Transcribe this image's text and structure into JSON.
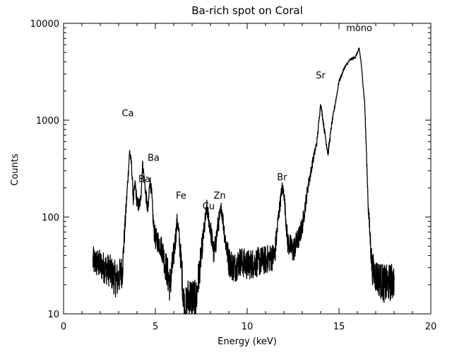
{
  "chart_data": {
    "type": "line",
    "title": "Ba-rich spot on Coral",
    "xlabel": "Energy (keV)",
    "ylabel": "Counts",
    "xlim": [
      0,
      20
    ],
    "ylim": [
      10,
      10000
    ],
    "y_scale": "log",
    "grid": false,
    "x_ticks": [
      0,
      5,
      10,
      15,
      20
    ],
    "y_ticks": [
      10,
      100,
      1000,
      10000
    ],
    "x_tick_labels": [
      "0",
      "5",
      "10",
      "15",
      "20"
    ],
    "y_tick_labels": [
      "10",
      "100",
      "1000",
      "10000"
    ],
    "line_color": "#000000",
    "series": [
      {
        "x": [
          1.6,
          2.0,
          2.5,
          2.9,
          3.2,
          3.4,
          3.6,
          3.7,
          3.8,
          3.9,
          4.0,
          4.1,
          4.2,
          4.3,
          4.5,
          4.6,
          4.7,
          4.8,
          4.9,
          5.0,
          5.2,
          5.4,
          5.5,
          5.8,
          6.0,
          6.2,
          6.4,
          6.6,
          6.8,
          7.0,
          7.2,
          7.4,
          7.6,
          7.8,
          8.0,
          8.2,
          8.4,
          8.6,
          8.8,
          9.0,
          9.3,
          9.6,
          10.0,
          10.5,
          11.0,
          11.5,
          11.7,
          11.9,
          12.0,
          12.2,
          12.5,
          12.8,
          13.0,
          13.3,
          13.6,
          13.8,
          14.0,
          14.2,
          14.4,
          14.6,
          14.8,
          15.0,
          15.3,
          15.6,
          15.9,
          16.1,
          16.2,
          16.4,
          16.6,
          16.8,
          17.0,
          17.5,
          18.0
        ],
        "y": [
          35,
          32,
          28,
          22,
          28,
          120,
          480,
          350,
          150,
          220,
          140,
          130,
          150,
          360,
          160,
          110,
          250,
          170,
          80,
          60,
          55,
          45,
          35,
          20,
          40,
          95,
          35,
          10,
          15,
          15,
          13,
          28,
          60,
          125,
          75,
          40,
          80,
          125,
          60,
          35,
          30,
          35,
          32,
          34,
          36,
          40,
          100,
          200,
          180,
          55,
          45,
          60,
          80,
          200,
          400,
          600,
          1500,
          800,
          450,
          900,
          1500,
          2500,
          3500,
          4200,
          4500,
          5500,
          4000,
          1500,
          120,
          30,
          25,
          20,
          22
        ]
      }
    ],
    "annotations": [
      {
        "text": "Ca",
        "x": 3.5,
        "y": 1100
      },
      {
        "text": "Ba",
        "x": 4.4,
        "y": 230
      },
      {
        "text": "Ba",
        "x": 4.9,
        "y": 380
      },
      {
        "text": "Fe",
        "x": 6.4,
        "y": 155
      },
      {
        "text": "Cu",
        "x": 7.9,
        "y": 120
      },
      {
        "text": "Zn",
        "x": 8.5,
        "y": 155
      },
      {
        "text": "Br",
        "x": 11.9,
        "y": 240
      },
      {
        "text": "Sr",
        "x": 14.0,
        "y": 2700
      },
      {
        "text": "mono",
        "x": 16.1,
        "y": 8300
      }
    ]
  }
}
